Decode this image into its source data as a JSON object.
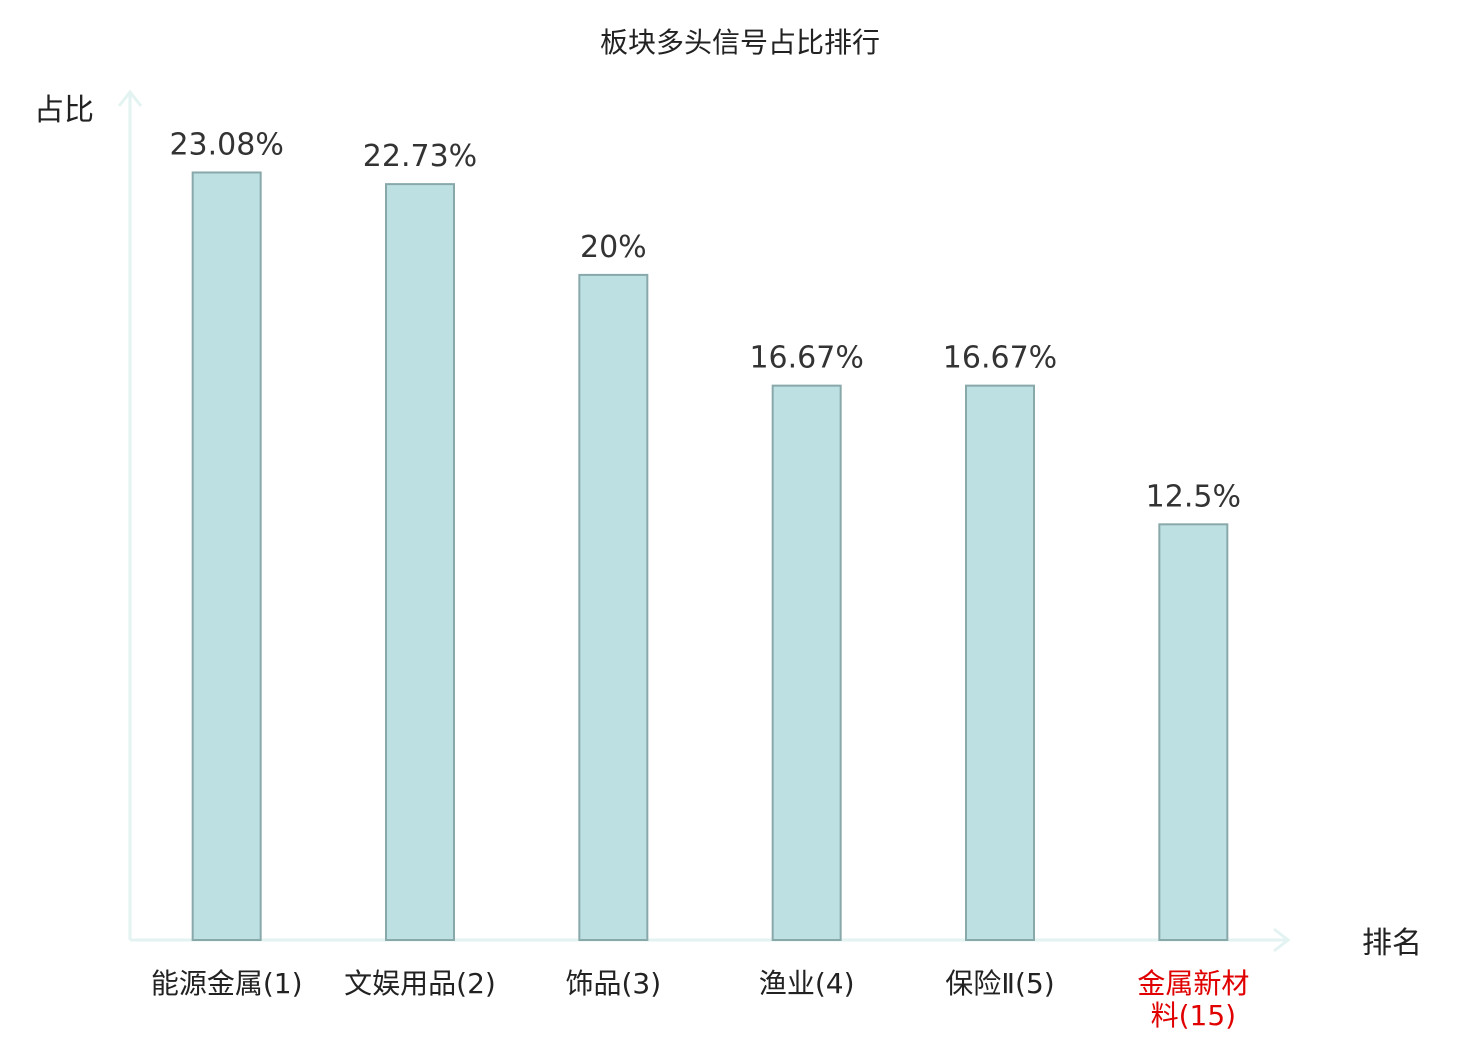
{
  "chart_data": {
    "type": "bar",
    "title": "板块多头信号占比排行",
    "ylabel": "占比",
    "xlabel": "排名",
    "ylim": [
      0,
      25.5
    ],
    "grid": false,
    "categories": [
      "能源金属(1)",
      "文娱用品(2)",
      "饰品(3)",
      "渔业(4)",
      "保险Ⅱ(5)",
      "金属新材料(15)"
    ],
    "category_lines": [
      [
        "能源金属(1)"
      ],
      [
        "文娱用品(2)"
      ],
      [
        "饰品(3)"
      ],
      [
        "渔业(4)"
      ],
      [
        "保险Ⅱ(5)"
      ],
      [
        "金属新材",
        "料(15)"
      ]
    ],
    "values": [
      23.08,
      22.73,
      20,
      16.67,
      16.67,
      12.5
    ],
    "value_labels": [
      "23.08%",
      "22.73%",
      "20%",
      "16.67%",
      "16.67%",
      "12.5%"
    ],
    "highlight_index": 5
  },
  "colors": {
    "bar_fill": "#bde0e3",
    "bar_stroke": "#88a8aa",
    "axis": "#e3f3f1",
    "text": "#222222",
    "highlight_text": "#e00000"
  }
}
